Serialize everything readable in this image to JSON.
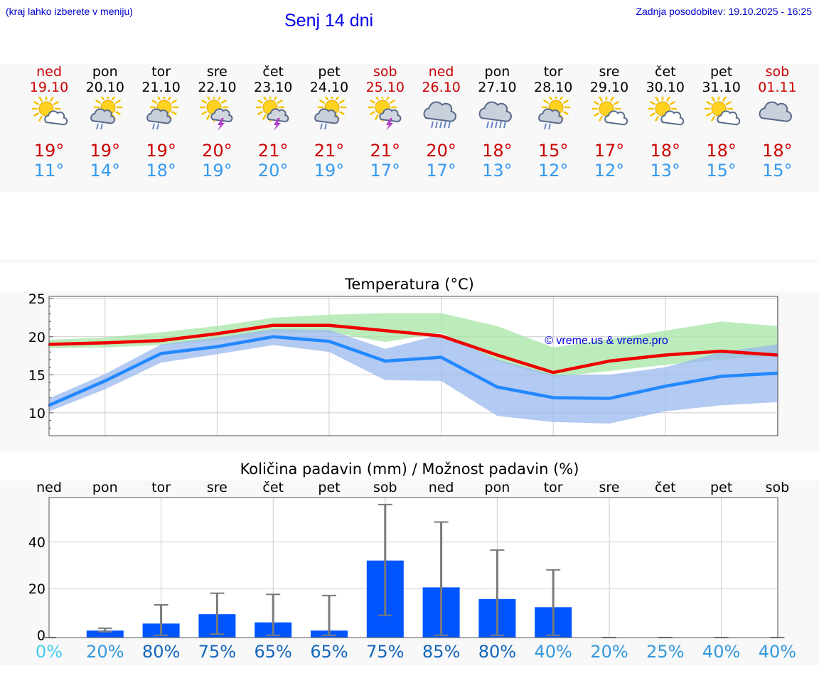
{
  "header": {
    "hint": "(kraj lahko izberete v meniju)",
    "title": "Senj 14 dni",
    "updated": "Zadnja posodobitev: 19.10.2025 - 16:25"
  },
  "colors": {
    "max": "#cc0000",
    "min": "#3399ee",
    "weekend": "#cc0000",
    "bar": "#0055ff"
  },
  "days": [
    {
      "name": "ned",
      "date": "19.10",
      "weekend": true,
      "icon": "sun-cloud-icon",
      "tmax": "19°",
      "tmin": "11°"
    },
    {
      "name": "pon",
      "date": "20.10",
      "weekend": false,
      "icon": "sun-rain-icon",
      "tmax": "19°",
      "tmin": "14°"
    },
    {
      "name": "tor",
      "date": "21.10",
      "weekend": false,
      "icon": "sun-rain-icon",
      "tmax": "19°",
      "tmin": "18°"
    },
    {
      "name": "sre",
      "date": "22.10",
      "weekend": false,
      "icon": "sun-storm-icon",
      "tmax": "20°",
      "tmin": "19°"
    },
    {
      "name": "čet",
      "date": "23.10",
      "weekend": false,
      "icon": "sun-storm-icon",
      "tmax": "21°",
      "tmin": "20°"
    },
    {
      "name": "pet",
      "date": "24.10",
      "weekend": false,
      "icon": "sun-rain-icon",
      "tmax": "21°",
      "tmin": "19°"
    },
    {
      "name": "sob",
      "date": "25.10",
      "weekend": true,
      "icon": "sun-storm-icon",
      "tmax": "21°",
      "tmin": "17°"
    },
    {
      "name": "ned",
      "date": "26.10",
      "weekend": true,
      "icon": "cloud-heavy-rain-icon",
      "tmax": "20°",
      "tmin": "17°"
    },
    {
      "name": "pon",
      "date": "27.10",
      "weekend": false,
      "icon": "cloud-heavy-rain-icon",
      "tmax": "18°",
      "tmin": "13°"
    },
    {
      "name": "tor",
      "date": "28.10",
      "weekend": false,
      "icon": "sun-rain-icon",
      "tmax": "15°",
      "tmin": "12°"
    },
    {
      "name": "sre",
      "date": "29.10",
      "weekend": false,
      "icon": "sun-cloud-icon",
      "tmax": "17°",
      "tmin": "12°"
    },
    {
      "name": "čet",
      "date": "30.10",
      "weekend": false,
      "icon": "sun-cloud-icon",
      "tmax": "18°",
      "tmin": "13°"
    },
    {
      "name": "pet",
      "date": "31.10",
      "weekend": false,
      "icon": "sun-cloud-icon",
      "tmax": "18°",
      "tmin": "15°"
    },
    {
      "name": "sob",
      "date": "01.11",
      "weekend": true,
      "icon": "cloud-icon",
      "tmax": "18°",
      "tmin": "15°"
    }
  ],
  "chart_data": [
    {
      "type": "line",
      "title": "Temperatura (°C)",
      "watermark": "© vreme.us & vreme.pro",
      "x": [
        0,
        1,
        2,
        3,
        4,
        5,
        6,
        7,
        8,
        9,
        10,
        11,
        12,
        13
      ],
      "ylim": [
        7,
        25.3
      ],
      "yticks": [
        10,
        15,
        20,
        25
      ],
      "series": [
        {
          "name": "max",
          "color": "#ee0000",
          "values": [
            19.0,
            19.2,
            19.5,
            20.4,
            21.5,
            21.5,
            20.8,
            20.1,
            17.6,
            15.3,
            16.8,
            17.6,
            18.1,
            17.6
          ]
        },
        {
          "name": "min",
          "color": "#2288ff",
          "values": [
            11.0,
            14.2,
            17.8,
            18.7,
            20.0,
            19.4,
            16.8,
            17.3,
            13.4,
            12.0,
            11.9,
            13.5,
            14.8,
            15.2
          ]
        }
      ],
      "bands": [
        {
          "name": "max-range",
          "color": "#a6e6a6",
          "low": [
            18.5,
            18.6,
            18.9,
            19.5,
            20.5,
            20.6,
            19.3,
            20.5,
            16.8,
            14.7,
            15.5,
            16.3,
            17.0,
            17.5
          ],
          "high": [
            19.6,
            19.9,
            20.6,
            21.4,
            22.5,
            22.9,
            23.1,
            23.1,
            21.4,
            18.6,
            19.7,
            20.8,
            22.0,
            21.4
          ]
        },
        {
          "name": "min-range",
          "color": "#99b8ee",
          "low": [
            10.2,
            13.1,
            16.6,
            17.7,
            18.9,
            18.0,
            14.3,
            14.2,
            9.6,
            8.8,
            8.6,
            10.2,
            11.0,
            11.4
          ],
          "high": [
            11.9,
            15.1,
            19.0,
            19.9,
            21.0,
            20.9,
            18.4,
            20.3,
            17.0,
            15.0,
            15.0,
            16.0,
            18.0,
            19.0
          ]
        }
      ]
    },
    {
      "type": "bar",
      "title": "Količina padavin (mm) / Možnost padavin (%)",
      "categories": [
        "ned",
        "pon",
        "tor",
        "sre",
        "čet",
        "pet",
        "sob",
        "ned",
        "pon",
        "tor",
        "sre",
        "čet",
        "pet",
        "sob"
      ],
      "values": [
        0,
        2,
        5,
        9,
        5.5,
        2,
        32,
        20.5,
        15.5,
        12,
        0,
        0,
        0,
        0
      ],
      "err_low": [
        0,
        1.5,
        0,
        0.5,
        0,
        0,
        8.5,
        0,
        0,
        0,
        0,
        0,
        0,
        0
      ],
      "err_high": [
        0,
        3,
        13,
        18,
        17.5,
        17,
        56,
        48.5,
        36.5,
        28,
        0,
        0,
        0,
        0
      ],
      "ylim": [
        -1,
        59
      ],
      "yticks": [
        0,
        20,
        40
      ],
      "probability": [
        "0%",
        "20%",
        "80%",
        "75%",
        "65%",
        "65%",
        "75%",
        "85%",
        "80%",
        "40%",
        "20%",
        "25%",
        "40%",
        "40%"
      ],
      "probability_values": [
        0,
        20,
        80,
        75,
        65,
        65,
        75,
        85,
        80,
        40,
        20,
        25,
        40,
        40
      ]
    }
  ]
}
